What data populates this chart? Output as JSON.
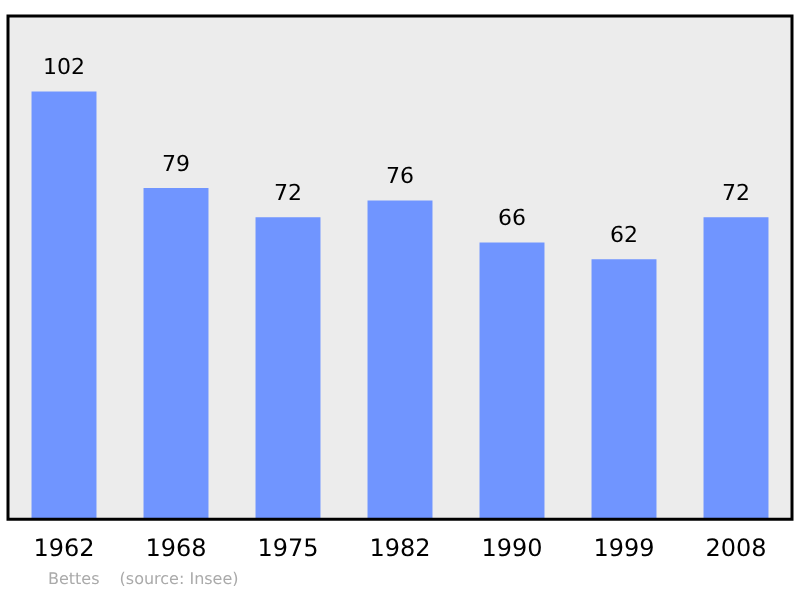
{
  "chart_data": {
    "type": "bar",
    "categories": [
      "1962",
      "1968",
      "1975",
      "1982",
      "1990",
      "1999",
      "2008"
    ],
    "values": [
      102,
      79,
      72,
      76,
      66,
      62,
      72
    ],
    "color": "#7095ff",
    "data_labels": true,
    "grid": false,
    "legend": false,
    "annotations": [
      "Bettes",
      "(source: Insee)"
    ]
  }
}
